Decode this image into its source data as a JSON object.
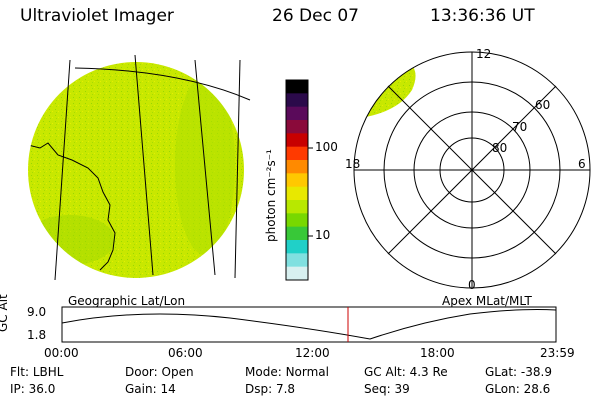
{
  "header": {
    "title": "Ultraviolet Imager",
    "date": "26 Dec 07",
    "time": "13:36:36 UT"
  },
  "colorbar": {
    "unit_label": "photon cm⁻²s⁻¹",
    "ticks": [
      "100",
      "10"
    ],
    "colors": [
      "#000000",
      "#2b0a4a",
      "#5a0a5a",
      "#8a0a3a",
      "#c80000",
      "#ff3a00",
      "#ff8a00",
      "#ffc800",
      "#e8e800",
      "#b8e800",
      "#78d800",
      "#38c838",
      "#20d0c8",
      "#80e0e0",
      "#d8f0f0"
    ]
  },
  "geo_panel": {
    "label": "Geographic Lat/Lon",
    "fill_color": "#c8e800"
  },
  "polar_panel": {
    "label": "Apex MLat/MLT",
    "mlt_labels": {
      "top": "12",
      "left": "18",
      "right": "6",
      "bottom": "0"
    },
    "lat_labels": [
      "60",
      "70",
      "80"
    ]
  },
  "altitude_plot": {
    "ylabel": "GC Alt",
    "y_ticks": [
      "9.0",
      "1.8"
    ],
    "x_ticks": [
      "00:00",
      "06:00",
      "12:00",
      "18:00",
      "23:59"
    ],
    "current_marker_color": "#cc0000"
  },
  "info": {
    "row1": [
      {
        "label": "Flt:",
        "value": "LBHL"
      },
      {
        "label": "Door:",
        "value": "Open"
      },
      {
        "label": "Mode:",
        "value": "Normal"
      },
      {
        "label": "GC Alt:",
        "value": "4.3 Re"
      },
      {
        "label": "GLat:",
        "value": "-38.9"
      }
    ],
    "row2": [
      {
        "label": "IP:",
        "value": "36.0"
      },
      {
        "label": "Gain:",
        "value": "14"
      },
      {
        "label": "Dsp:",
        "value": "7.8"
      },
      {
        "label": "Seq:",
        "value": "39"
      },
      {
        "label": "GLon:",
        "value": "28.6"
      }
    ]
  }
}
